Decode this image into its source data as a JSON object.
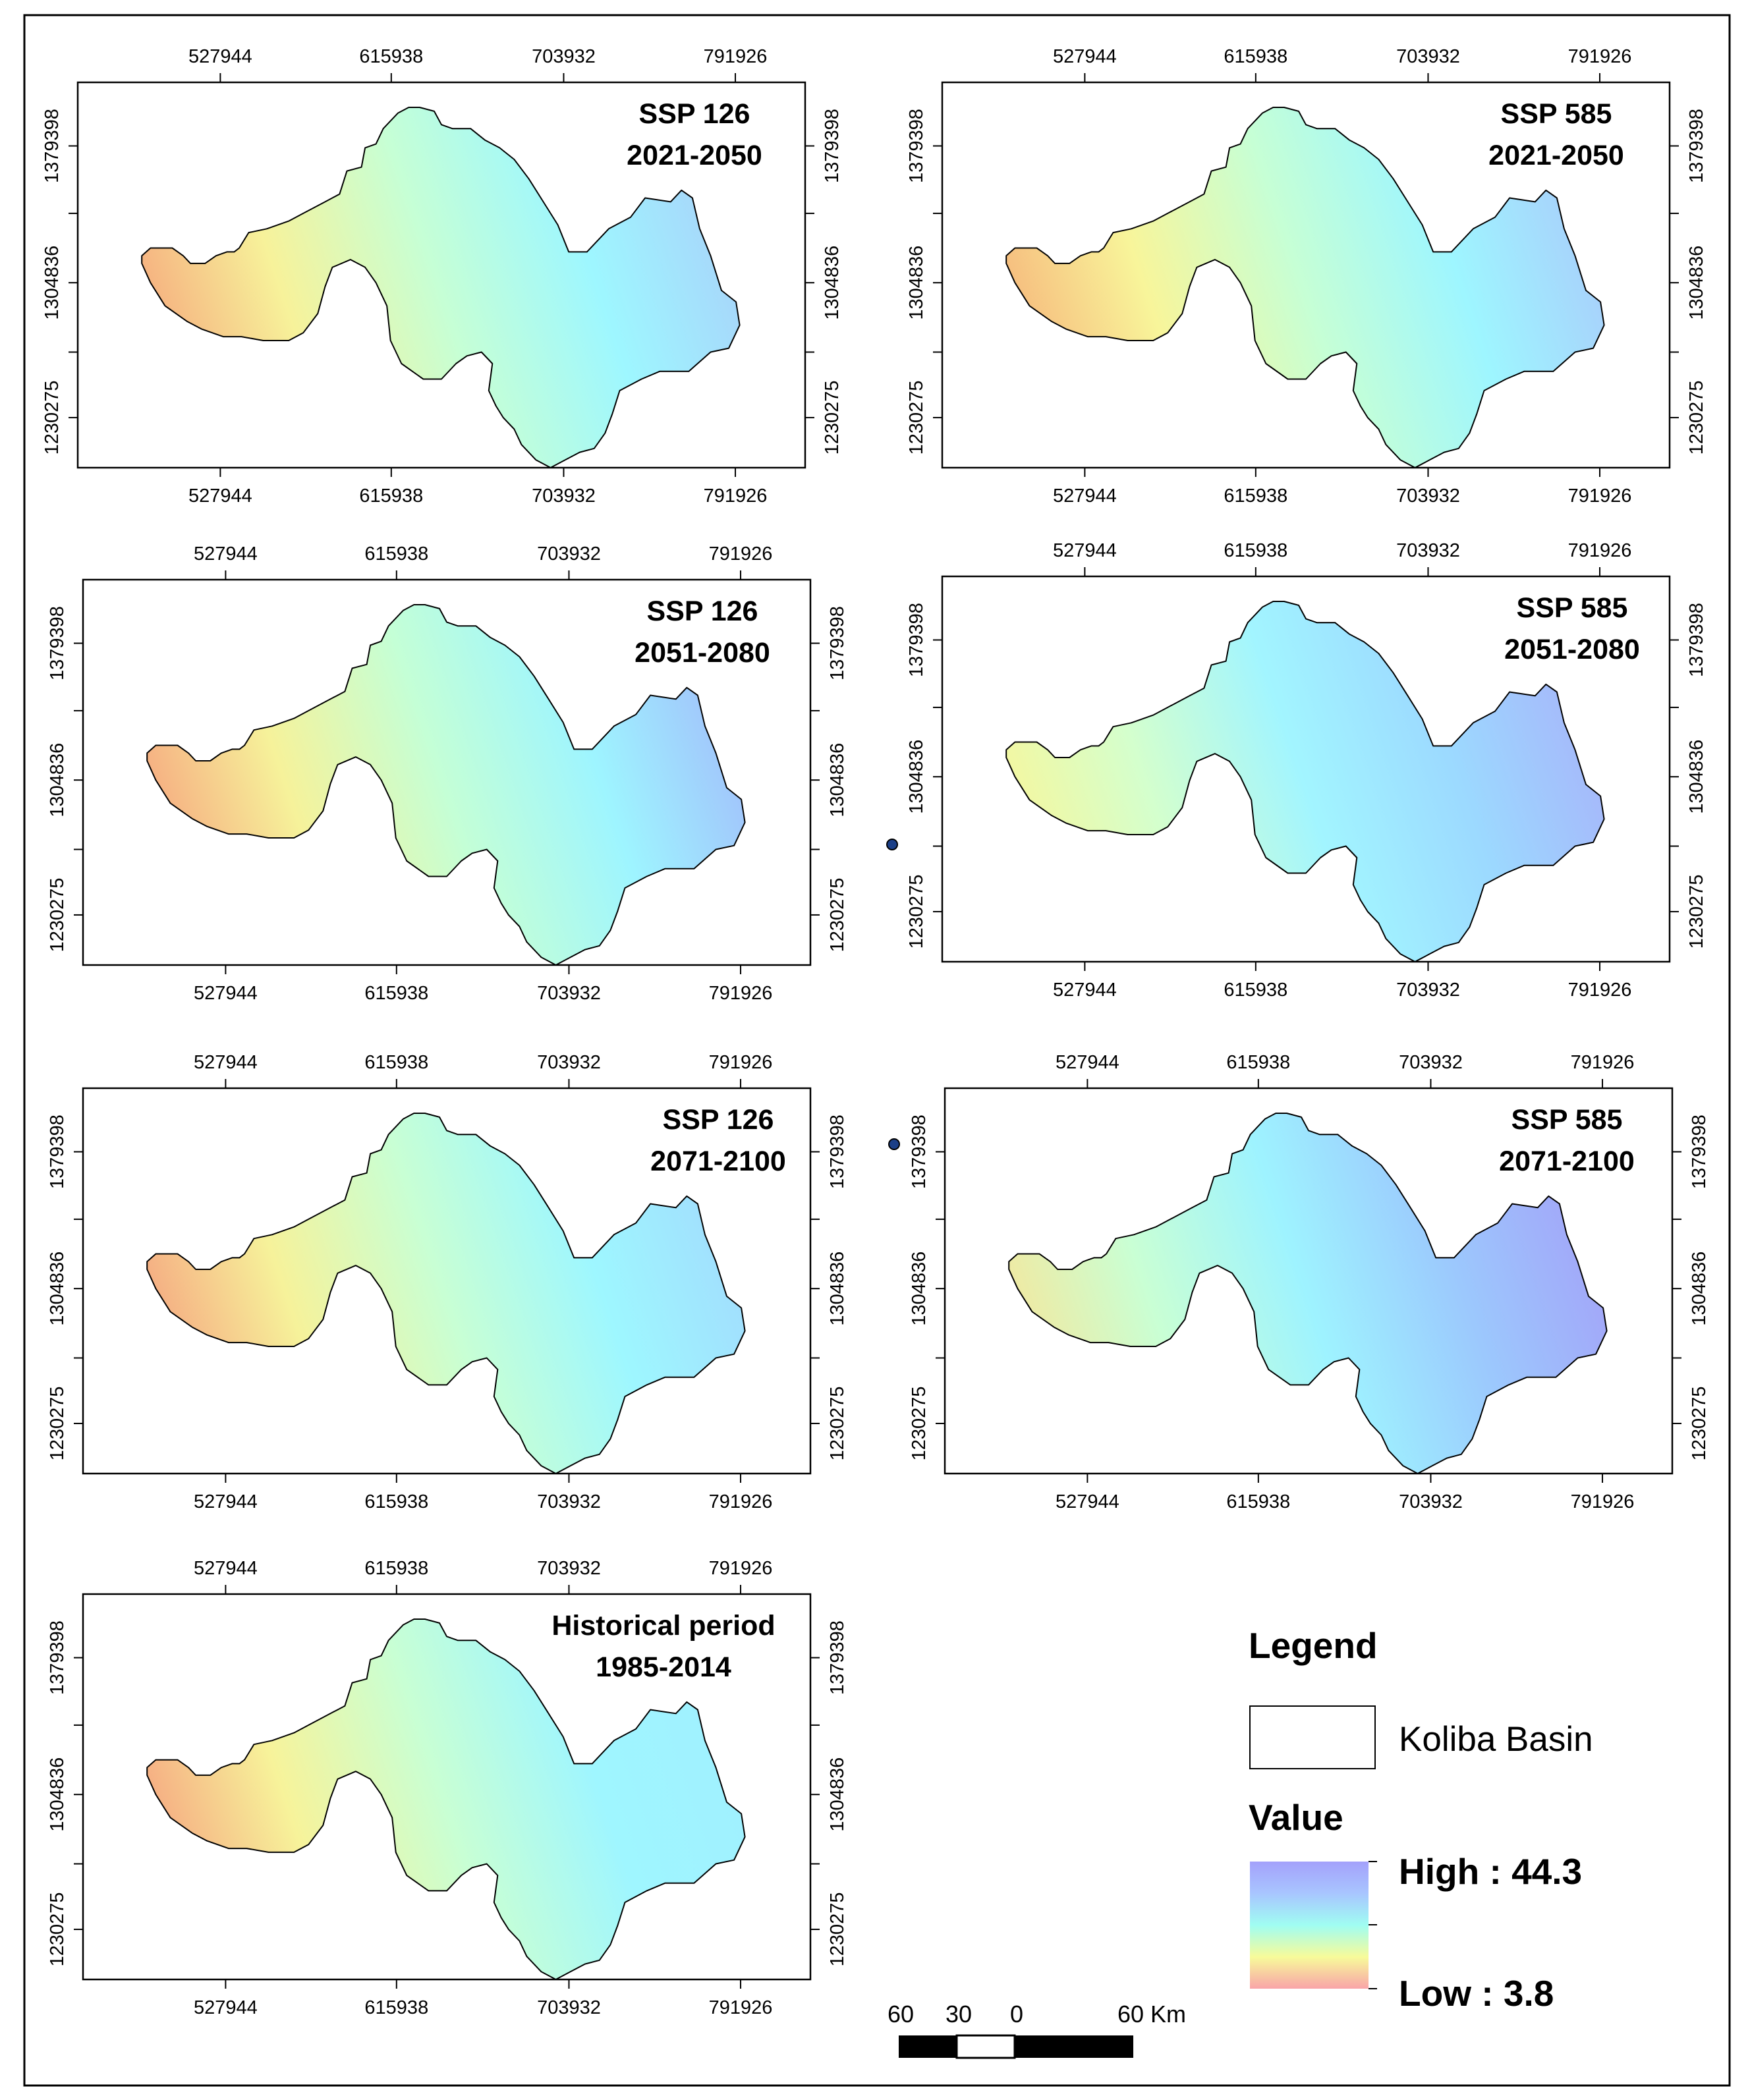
{
  "panels": [
    {
      "scenario": "SSP 126",
      "period": "2021-2050",
      "ramp": [
        "#f5a77c",
        "#f7f29a",
        "#c6ffd5",
        "#9ef7ff",
        "#a8d3fa"
      ]
    },
    {
      "scenario": "SSP 585",
      "period": "2021-2050",
      "ramp": [
        "#f6b47a",
        "#f8f59a",
        "#c6ffd5",
        "#9ef6ff",
        "#a9cdfb"
      ]
    },
    {
      "scenario": "SSP 126",
      "period": "2051-2080",
      "ramp": [
        "#f6a47e",
        "#f6f29a",
        "#c4ffd6",
        "#9ef5ff",
        "#a2bffb"
      ]
    },
    {
      "scenario": "SSP 585",
      "period": "2051-2080",
      "ramp": [
        "#f8f69a",
        "#d4ffcd",
        "#a2f5ff",
        "#9cd9ff",
        "#a7b5fa"
      ]
    },
    {
      "scenario": "SSP 126",
      "period": "2071-2100",
      "ramp": [
        "#f5a27f",
        "#f6f29a",
        "#c8ffd4",
        "#9ef7ff",
        "#a2dcfd"
      ]
    },
    {
      "scenario": "SSP 585",
      "period": "2071-2100",
      "ramp": [
        "#f6e69a",
        "#c9ffd4",
        "#9ef3ff",
        "#9cc8fd",
        "#a3a3f8"
      ]
    },
    {
      "scenario": "Historical period",
      "period": "1985-2014",
      "ramp": [
        "#f5a27f",
        "#f7f39a",
        "#c8ffd4",
        "#9ff6ff",
        "#a0f0ff"
      ]
    }
  ],
  "axes": {
    "x_ticks": [
      "527944",
      "615938",
      "703932",
      "791926"
    ],
    "y_ticks": [
      "1379398",
      "1304836",
      "1230275"
    ]
  },
  "legend": {
    "title": "Legend",
    "basin_label": "Koliba Basin",
    "value_title": "Value",
    "high_label": "High : 44.3",
    "low_label": "Low : 3.8",
    "gradient": [
      "#f9a4a8",
      "#f7fb9a",
      "#a0fdf2",
      "#a8c5ff",
      "#a4a1fb"
    ]
  },
  "scale_bar": {
    "labels": [
      "60",
      "30",
      "0",
      "60 Km"
    ]
  }
}
